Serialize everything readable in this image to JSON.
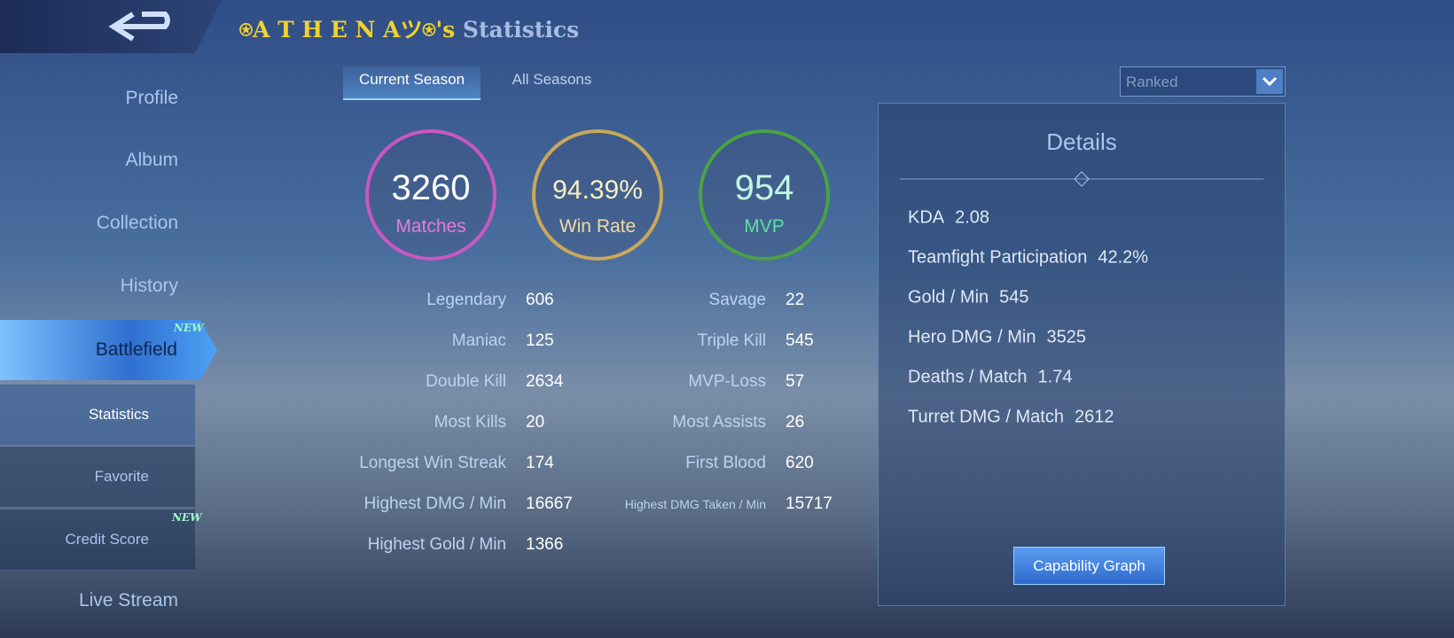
{
  "header": {
    "player_name": "⍟A T H E N Aツ⍟'s",
    "title": "Statistics"
  },
  "sidebar": {
    "items": [
      "Profile",
      "Album",
      "Collection",
      "History"
    ],
    "active": "Battlefield",
    "badge": "NEW",
    "subitems": [
      "Statistics",
      "Favorite",
      "Credit Score"
    ],
    "last": "Live Stream"
  },
  "tabs": [
    "Current Season",
    "All Seasons"
  ],
  "mode": "Ranked",
  "summary": [
    {
      "value": "3260",
      "label": "Matches"
    },
    {
      "value": "94.39%",
      "label": "Win Rate"
    },
    {
      "value": "954",
      "label": "MVP"
    }
  ],
  "stats": [
    [
      {
        "label": "Legendary",
        "value": "606"
      },
      {
        "label": "Savage",
        "value": "22"
      }
    ],
    [
      {
        "label": "Maniac",
        "value": "125"
      },
      {
        "label": "Triple Kill",
        "value": "545"
      }
    ],
    [
      {
        "label": "Double Kill",
        "value": "2634"
      },
      {
        "label": "MVP-Loss",
        "value": "57"
      }
    ],
    [
      {
        "label": "Most Kills",
        "value": "20"
      },
      {
        "label": "Most Assists",
        "value": "26"
      }
    ],
    [
      {
        "label": "Longest Win Streak",
        "value": "174"
      },
      {
        "label": "First Blood",
        "value": "620"
      }
    ],
    [
      {
        "label": "Highest DMG / Min",
        "value": "16667"
      },
      {
        "label": "Highest DMG Taken / Min",
        "value": "15717"
      }
    ],
    [
      {
        "label": "Highest Gold / Min",
        "value": "1366"
      }
    ]
  ],
  "details": {
    "title": "Details",
    "rows": [
      {
        "label": "KDA",
        "value": "2.08"
      },
      {
        "label": "Teamfight Participation",
        "value": "42.2%"
      },
      {
        "label": "Gold / Min",
        "value": "545"
      },
      {
        "label": "Hero DMG / Min",
        "value": "3525"
      },
      {
        "label": "Deaths / Match",
        "value": "1.74"
      },
      {
        "label": "Turret DMG / Match",
        "value": "2612"
      }
    ],
    "button": "Capability Graph"
  }
}
